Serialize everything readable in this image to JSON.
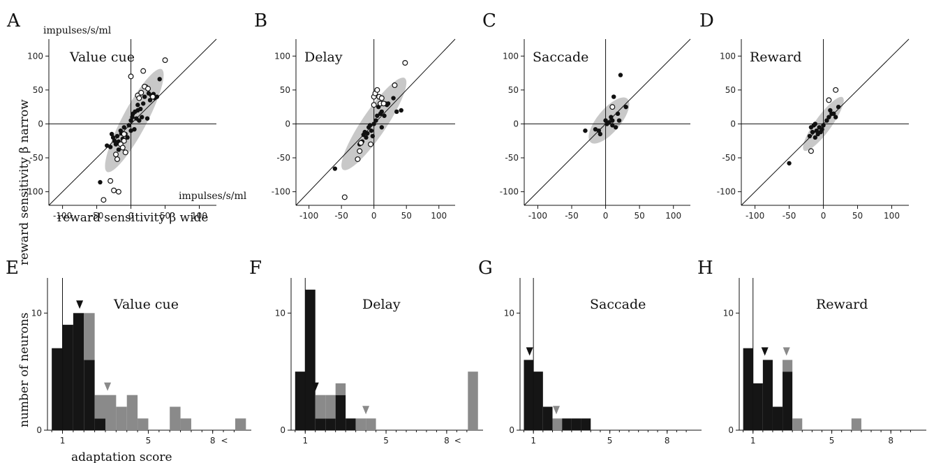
{
  "colors": {
    "ellipse": "#c8c8c8",
    "bar_dark": "#151515",
    "bar_gray": "#8a8a8a",
    "marker_dark": "#111111",
    "marker_gray": "#8a8a8a"
  },
  "labels": {
    "unit_top": "impulses/s/ml",
    "unit_right": "impulses/s/ml",
    "scatter_ylabel": "reward sensitivity  β narrow",
    "scatter_xlabel": "reward sensitivity  β wide",
    "hist_ylabel": "number of neurons",
    "hist_xlabel": "adaptation score",
    "overflow_mark": "<"
  },
  "chart_data": [
    {
      "type": "scatter",
      "panel": "A",
      "title": "Value cue",
      "xlim": [
        -120,
        125
      ],
      "ylim": [
        -120,
        125
      ],
      "xticks": [
        -100,
        -50,
        0,
        50,
        100
      ],
      "yticks": [
        -100,
        -50,
        0,
        50,
        100
      ],
      "ellipse": {
        "cx": 5,
        "cy": 5,
        "semi_major": 85,
        "semi_minor": 18,
        "angle": 62
      },
      "filled": [
        [
          -45,
          -86
        ],
        [
          -35,
          -32
        ],
        [
          -30,
          -34
        ],
        [
          -28,
          -15
        ],
        [
          -26,
          -20
        ],
        [
          -24,
          -25
        ],
        [
          -22,
          -30
        ],
        [
          -20,
          -18
        ],
        [
          -18,
          -26
        ],
        [
          -15,
          -10
        ],
        [
          -12,
          -22
        ],
        [
          -10,
          -5
        ],
        [
          -8,
          -15
        ],
        [
          -5,
          -20
        ],
        [
          -3,
          -2
        ],
        [
          0,
          5
        ],
        [
          2,
          10
        ],
        [
          3,
          15
        ],
        [
          5,
          -8
        ],
        [
          6,
          18
        ],
        [
          8,
          8
        ],
        [
          10,
          28
        ],
        [
          12,
          5
        ],
        [
          14,
          22
        ],
        [
          16,
          10
        ],
        [
          18,
          30
        ],
        [
          20,
          40
        ],
        [
          22,
          55
        ],
        [
          24,
          8
        ],
        [
          26,
          45
        ],
        [
          28,
          35
        ],
        [
          30,
          42
        ],
        [
          33,
          44
        ],
        [
          35,
          38
        ],
        [
          38,
          40
        ],
        [
          42,
          66
        ],
        [
          -14,
          -14
        ],
        [
          -18,
          -38
        ],
        [
          0,
          -10
        ],
        [
          10,
          20
        ]
      ],
      "open": [
        [
          -40,
          -112
        ],
        [
          -30,
          -84
        ],
        [
          -25,
          -98
        ],
        [
          -18,
          -100
        ],
        [
          -22,
          -45
        ],
        [
          -20,
          -52
        ],
        [
          -15,
          -30
        ],
        [
          -12,
          -35
        ],
        [
          -10,
          -15
        ],
        [
          -8,
          -42
        ],
        [
          0,
          70
        ],
        [
          10,
          42
        ],
        [
          12,
          38
        ],
        [
          15,
          46
        ],
        [
          18,
          78
        ],
        [
          20,
          55
        ],
        [
          25,
          52
        ],
        [
          32,
          40
        ],
        [
          50,
          94
        ],
        [
          -10,
          -25
        ]
      ]
    },
    {
      "type": "scatter",
      "panel": "B",
      "title": "Delay",
      "xlim": [
        -120,
        125
      ],
      "ylim": [
        -120,
        125
      ],
      "xticks": [
        -100,
        -50,
        0,
        50,
        100
      ],
      "yticks": [
        -100,
        -50,
        0,
        50,
        100
      ],
      "ellipse": {
        "cx": 0,
        "cy": 0,
        "semi_major": 85,
        "semi_minor": 18,
        "angle": 56
      },
      "filled": [
        [
          -60,
          -66
        ],
        [
          -22,
          -30
        ],
        [
          -18,
          -26
        ],
        [
          -16,
          -16
        ],
        [
          -14,
          -12
        ],
        [
          -12,
          -20
        ],
        [
          -10,
          -14
        ],
        [
          -8,
          -5
        ],
        [
          -6,
          -2
        ],
        [
          -4,
          -10
        ],
        [
          -2,
          -18
        ],
        [
          0,
          0
        ],
        [
          3,
          5
        ],
        [
          5,
          12
        ],
        [
          7,
          25
        ],
        [
          9,
          30
        ],
        [
          12,
          18
        ],
        [
          14,
          30
        ],
        [
          16,
          12
        ],
        [
          18,
          30
        ],
        [
          20,
          28
        ],
        [
          22,
          30
        ],
        [
          30,
          38
        ],
        [
          35,
          18
        ],
        [
          42,
          20
        ],
        [
          10,
          15
        ],
        [
          12,
          -5
        ]
      ],
      "open": [
        [
          -45,
          -108
        ],
        [
          -25,
          -52
        ],
        [
          -22,
          -40
        ],
        [
          -20,
          -28
        ],
        [
          -5,
          -30
        ],
        [
          0,
          40
        ],
        [
          2,
          45
        ],
        [
          5,
          50
        ],
        [
          8,
          40
        ],
        [
          10,
          30
        ],
        [
          12,
          38
        ],
        [
          15,
          30
        ],
        [
          32,
          57
        ],
        [
          48,
          90
        ],
        [
          0,
          28
        ]
      ]
    },
    {
      "type": "scatter",
      "panel": "C",
      "title": "Saccade",
      "xlim": [
        -120,
        125
      ],
      "ylim": [
        -120,
        125
      ],
      "xticks": [
        -100,
        -50,
        0,
        50,
        100
      ],
      "yticks": [
        -100,
        -50,
        0,
        50,
        100
      ],
      "ellipse": {
        "cx": 5,
        "cy": 5,
        "semi_major": 42,
        "semi_minor": 17,
        "angle": 50
      },
      "filled": [
        [
          -30,
          -10
        ],
        [
          -15,
          -8
        ],
        [
          -10,
          -10
        ],
        [
          -8,
          -15
        ],
        [
          0,
          5
        ],
        [
          2,
          0
        ],
        [
          5,
          2
        ],
        [
          8,
          10
        ],
        [
          10,
          5
        ],
        [
          12,
          40
        ],
        [
          15,
          -5
        ],
        [
          18,
          15
        ],
        [
          20,
          5
        ],
        [
          22,
          72
        ],
        [
          30,
          25
        ],
        [
          10,
          -2
        ]
      ],
      "open": [
        [
          10,
          25
        ]
      ]
    },
    {
      "type": "scatter",
      "panel": "D",
      "title": "Reward",
      "xlim": [
        -120,
        125
      ],
      "ylim": [
        -120,
        125
      ],
      "xticks": [
        -100,
        -50,
        0,
        50,
        100
      ],
      "yticks": [
        -100,
        -50,
        0,
        50,
        100
      ],
      "ellipse": {
        "cx": 0,
        "cy": 0,
        "semi_major": 48,
        "semi_minor": 12,
        "angle": 54
      },
      "filled": [
        [
          -50,
          -58
        ],
        [
          -20,
          -18
        ],
        [
          -18,
          -5
        ],
        [
          -16,
          -12
        ],
        [
          -14,
          -2
        ],
        [
          -12,
          -20
        ],
        [
          -10,
          -10
        ],
        [
          -8,
          -15
        ],
        [
          -6,
          -5
        ],
        [
          -4,
          -12
        ],
        [
          -2,
          -8
        ],
        [
          0,
          -2
        ],
        [
          5,
          5
        ],
        [
          8,
          10
        ],
        [
          10,
          20
        ],
        [
          12,
          15
        ],
        [
          15,
          15
        ],
        [
          18,
          10
        ],
        [
          22,
          25
        ],
        [
          -12,
          0
        ]
      ],
      "open": [
        [
          -18,
          -40
        ],
        [
          8,
          35
        ],
        [
          18,
          50
        ]
      ]
    },
    {
      "type": "bar",
      "panel": "E",
      "title": "Value cue",
      "xlim": [
        0.3,
        9.8
      ],
      "ylim": [
        0,
        13
      ],
      "xticks": [
        1,
        5,
        8
      ],
      "yticks": [
        0,
        10
      ],
      "bin_width": 0.5,
      "overflow": true,
      "bins_start": [
        0.5,
        1.0,
        1.5,
        2.0,
        2.5,
        3.0,
        3.5,
        4.0,
        4.5,
        5.0,
        5.5,
        6.0,
        6.5,
        7.0,
        7.5,
        8.0
      ],
      "dark": [
        7,
        9,
        10,
        6,
        1,
        0,
        0,
        0,
        0,
        0,
        0,
        0,
        0,
        0,
        0,
        0
      ],
      "gray": [
        0,
        0,
        0,
        4,
        2,
        3,
        2,
        3,
        1,
        0,
        0,
        2,
        1,
        0,
        0,
        0
      ],
      "overflow_gray": 1,
      "arrow_dark": 1.8,
      "arrow_gray": 3.1,
      "reference_line": 1
    },
    {
      "type": "bar",
      "panel": "F",
      "title": "Delay",
      "xlim": [
        0.3,
        9.8
      ],
      "ylim": [
        0,
        13
      ],
      "xticks": [
        1,
        5,
        8
      ],
      "yticks": [
        0,
        10
      ],
      "bin_width": 0.5,
      "overflow": true,
      "bins_start": [
        0.5,
        1.0,
        1.5,
        2.0,
        2.5,
        3.0,
        3.5,
        4.0,
        4.5,
        5.0,
        5.5,
        6.0,
        6.5,
        7.0,
        7.5,
        8.0
      ],
      "dark": [
        5,
        12,
        1,
        1,
        3,
        1,
        0,
        0,
        0,
        0,
        0,
        0,
        0,
        0,
        0,
        0
      ],
      "gray": [
        0,
        0,
        2,
        2,
        1,
        0,
        1,
        1,
        0,
        0,
        0,
        0,
        0,
        0,
        0,
        0
      ],
      "overflow_gray": 5,
      "arrow_dark": 1.5,
      "arrow_gray": 4.0,
      "reference_line": 1
    },
    {
      "type": "bar",
      "panel": "G",
      "title": "Saccade",
      "xlim": [
        0.3,
        9.8
      ],
      "ylim": [
        0,
        13
      ],
      "xticks": [
        1,
        5,
        8
      ],
      "yticks": [
        0,
        10
      ],
      "bin_width": 0.5,
      "overflow": false,
      "bins_start": [
        0.5,
        1.0,
        1.5,
        2.0,
        2.5,
        3.0,
        3.5,
        4.0,
        4.5,
        5.0,
        5.5,
        6.0,
        6.5,
        7.0,
        7.5,
        8.0
      ],
      "dark": [
        6,
        5,
        2,
        0,
        1,
        1,
        1,
        0,
        0,
        0,
        0,
        0,
        0,
        0,
        0,
        0
      ],
      "gray": [
        0,
        0,
        0,
        1,
        0,
        0,
        0,
        0,
        0,
        0,
        0,
        0,
        0,
        0,
        0,
        0
      ],
      "arrow_dark": 0.8,
      "arrow_gray": 2.2,
      "reference_line": 1
    },
    {
      "type": "bar",
      "panel": "H",
      "title": "Reward",
      "xlim": [
        0.3,
        9.8
      ],
      "ylim": [
        0,
        13
      ],
      "xticks": [
        1,
        5,
        8
      ],
      "yticks": [
        0,
        10
      ],
      "bin_width": 0.5,
      "overflow": false,
      "bins_start": [
        0.5,
        1.0,
        1.5,
        2.0,
        2.5,
        3.0,
        3.5,
        4.0,
        4.5,
        5.0,
        5.5,
        6.0,
        6.5,
        7.0,
        7.5,
        8.0
      ],
      "dark": [
        7,
        4,
        6,
        2,
        5,
        0,
        0,
        0,
        0,
        0,
        0,
        0,
        0,
        0,
        0,
        0
      ],
      "gray": [
        0,
        0,
        0,
        0,
        1,
        1,
        0,
        0,
        0,
        0,
        0,
        1,
        0,
        0,
        0,
        0
      ],
      "arrow_dark": 1.6,
      "arrow_gray": 2.7,
      "reference_line": 1
    }
  ]
}
